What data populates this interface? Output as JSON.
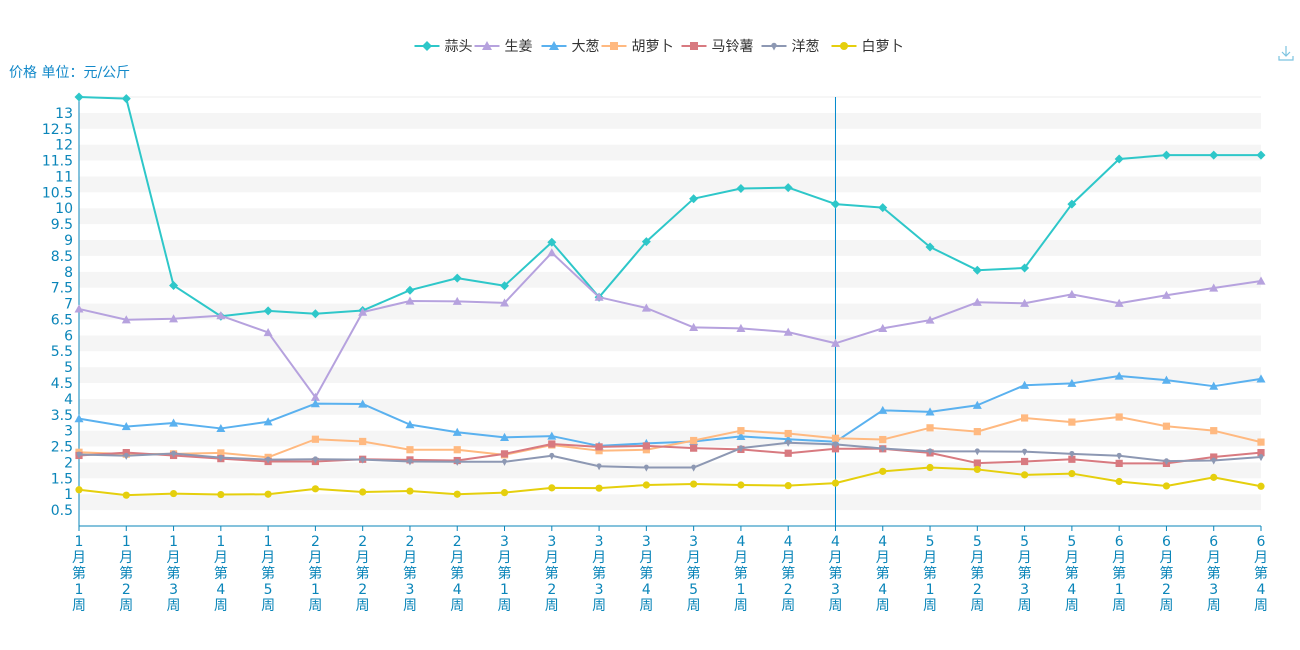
{
  "ylabel": "价格 单位：元/公斤",
  "chart_data": {
    "type": "line",
    "title": "",
    "xlabel": "",
    "ylabel": "价格 单位：元/公斤",
    "ylim": [
      0,
      13.5
    ],
    "yticks": [
      0.5,
      1,
      1.5,
      2,
      2.5,
      3,
      3.5,
      4,
      4.5,
      5,
      5.5,
      6,
      6.5,
      7,
      7.5,
      8,
      8.5,
      9,
      9.5,
      10,
      10.5,
      11,
      11.5,
      12,
      12.5,
      13
    ],
    "grid": "alternating horizontal bands",
    "legend_position": "top-center",
    "highlighted_category": "4月第3周",
    "categories": [
      "1月第1周",
      "1月第2周",
      "1月第3周",
      "1月第4周",
      "1月第5周",
      "2月第1周",
      "2月第2周",
      "2月第3周",
      "2月第4周",
      "3月第1周",
      "3月第2周",
      "3月第3周",
      "3月第4周",
      "3月第5周",
      "4月第1周",
      "4月第2周",
      "4月第3周",
      "4月第4周",
      "5月第1周",
      "5月第2周",
      "5月第3周",
      "5月第4周",
      "6月第1周",
      "6月第2周",
      "6月第3周",
      "6月第4周"
    ],
    "series": [
      {
        "name": "蒜头",
        "color": "#2ec7c9",
        "symbol": "diamond",
        "values": [
          13.5,
          13.45,
          7.57,
          6.6,
          6.77,
          6.68,
          6.78,
          7.42,
          7.8,
          7.56,
          8.93,
          7.2,
          8.95,
          10.3,
          10.62,
          10.65,
          10.13,
          10.02,
          8.78,
          8.05,
          8.12,
          10.13,
          11.55,
          11.67,
          11.67,
          11.67
        ]
      },
      {
        "name": "生姜",
        "color": "#b6a2de",
        "symbol": "triangle",
        "values": [
          6.83,
          6.49,
          6.52,
          6.62,
          6.09,
          4.05,
          6.73,
          7.08,
          7.07,
          7.02,
          8.6,
          7.2,
          6.86,
          6.25,
          6.22,
          6.1,
          5.75,
          6.22,
          6.48,
          7.04,
          7.01,
          7.29,
          7.01,
          7.26,
          7.49,
          7.71
        ]
      },
      {
        "name": "大葱",
        "color": "#5ab1ef",
        "symbol": "triangle",
        "values": [
          3.38,
          3.13,
          3.24,
          3.07,
          3.28,
          3.85,
          3.84,
          3.19,
          2.95,
          2.79,
          2.83,
          2.52,
          2.6,
          2.66,
          2.82,
          2.73,
          2.65,
          3.64,
          3.59,
          3.8,
          4.43,
          4.49,
          4.72,
          4.59,
          4.4,
          4.63
        ]
      },
      {
        "name": "胡萝卜",
        "color": "#ffb980",
        "symbol": "rect",
        "values": [
          2.32,
          2.26,
          2.27,
          2.3,
          2.16,
          2.73,
          2.66,
          2.4,
          2.4,
          2.24,
          2.55,
          2.37,
          2.4,
          2.69,
          3.0,
          2.91,
          2.76,
          2.72,
          3.09,
          2.97,
          3.4,
          3.27,
          3.43,
          3.14,
          3.0,
          2.64
        ]
      },
      {
        "name": "马铃薯",
        "color": "#d87a80",
        "symbol": "rect",
        "values": [
          2.22,
          2.31,
          2.22,
          2.12,
          2.03,
          2.03,
          2.1,
          2.08,
          2.06,
          2.27,
          2.58,
          2.49,
          2.52,
          2.45,
          2.41,
          2.29,
          2.43,
          2.43,
          2.3,
          1.98,
          2.03,
          2.1,
          1.97,
          1.97,
          2.17,
          2.31
        ]
      },
      {
        "name": "洋葱",
        "color": "#8d98b3",
        "symbol": "pin",
        "values": [
          2.25,
          2.21,
          2.28,
          2.15,
          2.09,
          2.1,
          2.09,
          2.03,
          2.02,
          2.02,
          2.21,
          1.88,
          1.84,
          1.84,
          2.45,
          2.62,
          2.57,
          2.44,
          2.35,
          2.35,
          2.34,
          2.27,
          2.21,
          2.04,
          2.06,
          2.17
        ]
      },
      {
        "name": "白萝卜",
        "color": "#e5cf0d",
        "symbol": "circle",
        "values": [
          1.14,
          0.97,
          1.02,
          0.99,
          1.0,
          1.17,
          1.07,
          1.1,
          1.0,
          1.05,
          1.2,
          1.19,
          1.29,
          1.32,
          1.29,
          1.27,
          1.35,
          1.72,
          1.84,
          1.78,
          1.61,
          1.65,
          1.4,
          1.26,
          1.53,
          1.25
        ]
      }
    ]
  }
}
